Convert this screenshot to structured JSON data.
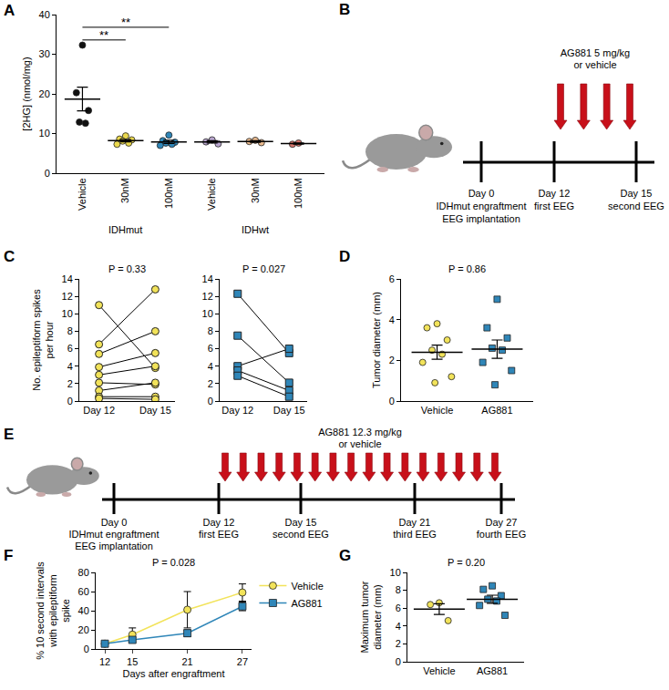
{
  "chart_data": [
    {
      "panel": "A",
      "type": "dot_plot",
      "ylabel": [
        "[2HG] (nmol/mg)"
      ],
      "ylim": [
        0,
        40
      ],
      "yticks": [
        0,
        10,
        20,
        30,
        40
      ],
      "series": [
        {
          "name": "Vehicle",
          "group": "IDHmut",
          "color": "#111111",
          "marker": "circle",
          "values": [
            32.3,
            20.3,
            15.8,
            12.9,
            12.6
          ],
          "mean": 18.7,
          "sem": 3.0
        },
        {
          "name": "30nM",
          "group": "IDHmut",
          "color": "#ead84e",
          "marker": "circle",
          "values": [
            9.4,
            8.6,
            8.4,
            8.1,
            7.6,
            7.3
          ],
          "mean": 8.2,
          "sem": 0.3
        },
        {
          "name": "100nM",
          "group": "IDHmut",
          "color": "#2f86b8",
          "marker": "circle",
          "values": [
            9.6,
            8.2,
            7.8,
            7.6,
            7.3,
            7.0
          ],
          "mean": 7.9,
          "sem": 0.4
        },
        {
          "name": "Vehicle",
          "group": "IDHwt",
          "color": "#b9a6cf",
          "marker": "circle",
          "values": [
            8.4,
            7.9,
            7.4
          ],
          "mean": 7.9,
          "sem": 0.3
        },
        {
          "name": "30nM",
          "group": "IDHwt",
          "color": "#e8b98e",
          "marker": "circle",
          "values": [
            8.3,
            8.0,
            7.7
          ],
          "mean": 8.0,
          "sem": 0.2
        },
        {
          "name": "100nM",
          "group": "IDHwt",
          "color": "#d9776e",
          "marker": "circle",
          "values": [
            7.6,
            7.3
          ],
          "mean": 7.45,
          "sem": 0.15
        }
      ],
      "significance": [
        {
          "from": 0,
          "to": 1,
          "label": "**"
        },
        {
          "from": 0,
          "to": 2,
          "label": "**"
        }
      ]
    },
    {
      "panel": "C",
      "type": "paired",
      "categories": [
        "Day 12",
        "Day 15"
      ],
      "ylabel": [
        "No. epileptiform spikes",
        "per hour"
      ],
      "ylim": [
        0,
        14
      ],
      "yticks": [
        0,
        2,
        4,
        6,
        8,
        10,
        12,
        14
      ],
      "color": "#f2e35a",
      "marker": "circle",
      "annotation": "P = 0.33",
      "pairs": [
        [
          11.0,
          3.8
        ],
        [
          6.5,
          12.8
        ],
        [
          5.4,
          8.0
        ],
        [
          3.9,
          5.5
        ],
        [
          3.0,
          4.0
        ],
        [
          2.1,
          1.9
        ],
        [
          1.2,
          2.1
        ],
        [
          0.5,
          0.5
        ],
        [
          0.3,
          0.2
        ]
      ]
    },
    {
      "type": "paired",
      "categories": [
        "Day 12",
        "Day 15"
      ],
      "ylim": [
        0,
        14
      ],
      "yticks": [
        0,
        2,
        4,
        6,
        8,
        10,
        12,
        14
      ],
      "color": "#2f86b8",
      "marker": "square",
      "annotation": "P = 0.027",
      "pairs": [
        [
          12.3,
          5.5
        ],
        [
          7.5,
          2.1
        ],
        [
          4.0,
          6.0
        ],
        [
          3.5,
          1.2
        ],
        [
          2.9,
          0.5
        ]
      ]
    },
    {
      "panel": "D",
      "type": "dot_plot",
      "ylabel": [
        "Tumor diameter (mm)"
      ],
      "ylim": [
        0,
        6
      ],
      "yticks": [
        0,
        2,
        4,
        6
      ],
      "annotation": "P = 0.86",
      "series": [
        {
          "name": "Vehicle",
          "color": "#f2e35a",
          "marker": "circle",
          "values": [
            3.8,
            3.6,
            3.0,
            2.5,
            2.3,
            1.9,
            1.2,
            0.9
          ],
          "mean": 2.4,
          "sem": 0.35
        },
        {
          "name": "AG881",
          "color": "#2f86b8",
          "marker": "square",
          "values": [
            5.0,
            3.6,
            3.1,
            2.6,
            2.5,
            1.9,
            1.5,
            0.8
          ],
          "mean": 2.55,
          "sem": 0.45
        }
      ]
    },
    {
      "panel": "F",
      "type": "line",
      "x": [
        12,
        15,
        21,
        27
      ],
      "xlim": [
        11,
        28
      ],
      "xticks": [
        12,
        15,
        21,
        27
      ],
      "xlabel": "Days after engraftment",
      "ylabel": [
        "% 10 second intervals",
        "with epileptiform",
        "spike"
      ],
      "ylim": [
        0,
        80
      ],
      "yticks": [
        0,
        20,
        40,
        60,
        80
      ],
      "legend": "upper right",
      "annotation": "P = 0.028",
      "series": [
        {
          "name": "Vehicle",
          "color": "#f2e35a",
          "marker": "circle",
          "values": [
            5.5,
            15,
            41,
            59
          ],
          "error": [
            0.5,
            7,
            19,
            9
          ]
        },
        {
          "name": "AG881",
          "color": "#2f86b8",
          "marker": "square",
          "values": [
            5.5,
            9.5,
            16.5,
            44.5
          ],
          "error": [
            1,
            2.5,
            3.5,
            4.5
          ]
        }
      ]
    },
    {
      "panel": "G",
      "type": "dot_plot",
      "ylabel": [
        "Maximum tumor",
        "diameter (mm)"
      ],
      "ylim": [
        0,
        10
      ],
      "yticks": [
        0,
        2,
        4,
        6,
        8,
        10
      ],
      "annotation": "P = 0.20",
      "series": [
        {
          "name": "Vehicle",
          "color": "#f2e35a",
          "marker": "circle",
          "values": [
            6.6,
            6.4,
            4.6
          ],
          "mean": 5.9,
          "sem": 0.6
        },
        {
          "name": "AG881",
          "color": "#2f86b8",
          "marker": "square",
          "values": [
            8.5,
            8.1,
            7.4,
            7.0,
            6.8,
            6.3,
            5.2
          ],
          "mean": 7.0,
          "sem": 0.45
        }
      ]
    }
  ],
  "diagrams": [
    {
      "panel": "B",
      "dose": [
        "AG881 5 mg/kg",
        "or vehicle"
      ],
      "arrows": 4,
      "events": [
        [
          "Day 0",
          "IDHmut engraftment",
          "EEG implantation"
        ],
        [
          "Day 12",
          "first EEG"
        ],
        [
          "Day 15",
          "second EEG"
        ]
      ]
    },
    {
      "panel": "E",
      "dose": [
        "AG881 12.3 mg/kg",
        "or vehicle"
      ],
      "arrows": 16,
      "events": [
        [
          "Day 0",
          "IDHmut engraftment",
          "EEG implantation"
        ],
        [
          "Day 12",
          "first EEG"
        ],
        [
          "Day 15",
          "second EEG"
        ],
        [
          "Day 21",
          "third EEG"
        ],
        [
          "Day 27",
          "fourth EEG"
        ]
      ]
    }
  ]
}
